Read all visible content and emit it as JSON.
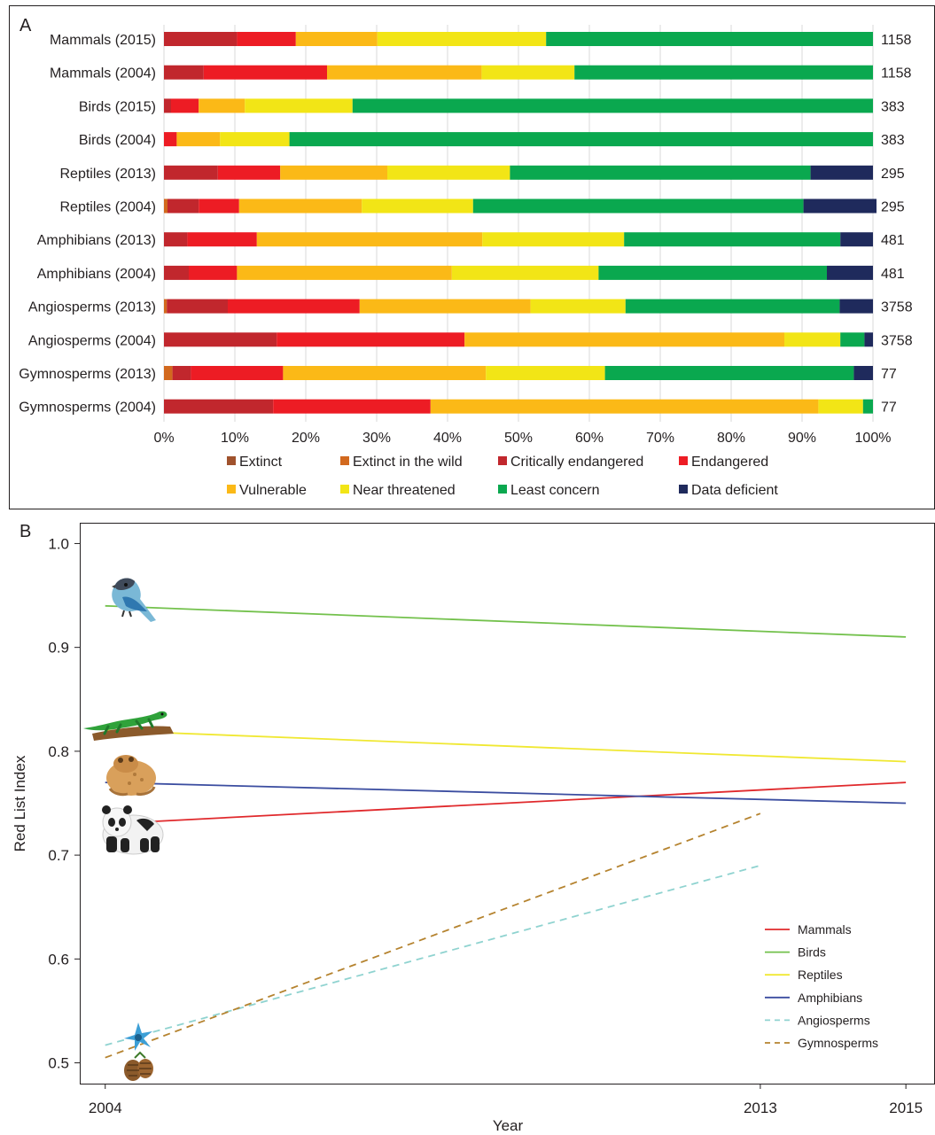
{
  "panels": {
    "a_letter": "A",
    "b_letter": "B"
  },
  "colors": {
    "extinct": "#a0522d",
    "extinct_wild": "#d2691e",
    "critically_endangered": "#c1272d",
    "endangered": "#ed1c24",
    "vulnerable": "#fbb917",
    "near_threatened": "#f2e516",
    "least_concern": "#0aa84f",
    "data_deficient": "#1f2a5c",
    "mammals": "#e0292c",
    "birds": "#73c14c",
    "reptiles": "#f0e832",
    "amphibians": "#3b4da0",
    "angiosperms": "#8fd3d0",
    "gymnosperms": "#b5832f"
  },
  "icons": [
    "bird-icon",
    "lizard-icon",
    "toad-icon",
    "panda-icon",
    "flower-icon",
    "pinecone-icon"
  ],
  "chart_data": [
    {
      "type": "bar",
      "orientation": "horizontal",
      "stacked": "percent",
      "categories": [
        "Mammals (2015)",
        "Mammals (2004)",
        "Birds (2015)",
        "Birds (2004)",
        "Reptiles (2013)",
        "Reptiles (2004)",
        "Amphibians (2013)",
        "Amphibians (2004)",
        "Angiosperms (2013)",
        "Angiosperms (2004)",
        "Gymnosperms (2013)",
        "Gymnosperms (2004)"
      ],
      "totals": [
        "1158",
        "1158",
        "383",
        "383",
        "295",
        "295",
        "481",
        "481",
        "3758",
        "3758",
        "77",
        "77"
      ],
      "series": [
        {
          "name": "Extinct",
          "color_key": "extinct",
          "values": [
            0,
            0,
            0,
            0,
            0,
            0,
            0,
            0,
            0,
            0,
            0,
            0
          ]
        },
        {
          "name": "Extinct in the wild",
          "color_key": "extinct_wild",
          "values": [
            0,
            0,
            0,
            0,
            0,
            0.5,
            0,
            0,
            0.4,
            0,
            1.2,
            0
          ]
        },
        {
          "name": "Critically endangered",
          "color_key": "critically_endangered",
          "values": [
            10.3,
            5.6,
            1,
            0,
            7.6,
            4.4,
            3.3,
            3.5,
            8.6,
            15.9,
            2.6,
            15.4
          ]
        },
        {
          "name": "Endangered",
          "color_key": "endangered",
          "values": [
            8.3,
            17.4,
            3.9,
            1.8,
            8.8,
            5.7,
            9.8,
            6.8,
            18.6,
            26.5,
            13,
            22.2
          ]
        },
        {
          "name": "Vulnerable",
          "color_key": "vulnerable",
          "values": [
            11.5,
            21.8,
            6.5,
            6.1,
            15.1,
            17.3,
            31.8,
            30.3,
            24.1,
            45.1,
            28.6,
            54.7
          ]
        },
        {
          "name": "Near threatened",
          "color_key": "near_threatened",
          "values": [
            23.8,
            13.1,
            15.2,
            9.8,
            17.3,
            15.7,
            20,
            20.7,
            13.4,
            7.9,
            16.8,
            6.3
          ]
        },
        {
          "name": "Least concern",
          "color_key": "least_concern",
          "values": [
            46.1,
            42.1,
            73.4,
            82.3,
            42.4,
            46.6,
            30.5,
            32.2,
            30.2,
            3.4,
            35.1,
            1.4
          ]
        },
        {
          "name": "Data deficient",
          "color_key": "data_deficient",
          "values": [
            0,
            0,
            0,
            0,
            8.8,
            10.3,
            4.6,
            6.5,
            4.7,
            1.2,
            2.7,
            0
          ]
        }
      ],
      "x_ticks": [
        "0%",
        "10%",
        "20%",
        "30%",
        "40%",
        "50%",
        "60%",
        "70%",
        "80%",
        "90%",
        "100%"
      ],
      "xlim": [
        0,
        100
      ],
      "grid": true,
      "legend": "bottom"
    },
    {
      "type": "line",
      "xlabel": "Year",
      "ylabel": "Red List Index",
      "xlim": [
        2003.65,
        2015.4
      ],
      "ylim": [
        0.48,
        1.02
      ],
      "x_ticks": [
        2004,
        2013,
        2015
      ],
      "x_tick_labels": [
        "2004",
        "2013",
        "2015"
      ],
      "y_ticks": [
        0.5,
        0.6,
        0.7,
        0.8,
        0.9,
        1.0
      ],
      "y_tick_labels": [
        "0.5",
        "0.6",
        "0.7",
        "0.8",
        "0.9",
        "1.0"
      ],
      "grid": false,
      "legend": "bottom-right",
      "series": [
        {
          "name": "Mammals",
          "color_key": "mammals",
          "dash": false,
          "points": [
            [
              2004,
              0.73
            ],
            [
              2015,
              0.77
            ]
          ]
        },
        {
          "name": "Birds",
          "color_key": "birds",
          "dash": false,
          "points": [
            [
              2004,
              0.94
            ],
            [
              2015,
              0.91
            ]
          ]
        },
        {
          "name": "Reptiles",
          "color_key": "reptiles",
          "dash": false,
          "points": [
            [
              2004,
              0.82
            ],
            [
              2015,
              0.79
            ]
          ]
        },
        {
          "name": "Amphibians",
          "color_key": "amphibians",
          "dash": false,
          "points": [
            [
              2004,
              0.77
            ],
            [
              2015,
              0.75
            ]
          ]
        },
        {
          "name": "Angiosperms",
          "color_key": "angiosperms",
          "dash": true,
          "points": [
            [
              2004,
              0.517
            ],
            [
              2013,
              0.69
            ]
          ]
        },
        {
          "name": "Gymnosperms",
          "color_key": "gymnosperms",
          "dash": true,
          "points": [
            [
              2004,
              0.505
            ],
            [
              2013,
              0.74
            ]
          ]
        }
      ]
    }
  ]
}
